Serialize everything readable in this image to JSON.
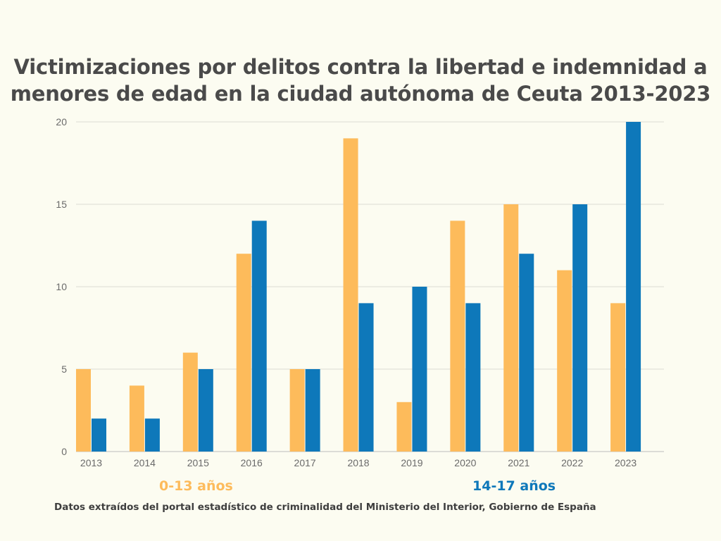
{
  "page": {
    "title_line1": "Victimizaciones por delitos contra la libertad e indemnidad a",
    "title_line2": "menores de edad en la ciudad autónoma de Ceuta 2013-2023",
    "source": "Datos extraídos del portal estadístico de criminalidad del Ministerio del Interior, Gobierno de España",
    "background": "#fcfcf1"
  },
  "chart_data": {
    "type": "bar",
    "title": "Victimizaciones por delitos contra la libertad e indemnidad a menores de edad en la ciudad autónoma de Ceuta 2013-2023",
    "categories": [
      "2013",
      "2014",
      "2015",
      "2016",
      "2017",
      "2018",
      "2019",
      "2020",
      "2021",
      "2022",
      "2023"
    ],
    "series": [
      {
        "name": "0-13 años",
        "color": "#fdbb5b",
        "values": [
          5,
          4,
          6,
          12,
          5,
          19,
          3,
          14,
          15,
          11,
          9
        ]
      },
      {
        "name": "14-17 años",
        "color": "#0e78ba",
        "values": [
          2,
          2,
          5,
          14,
          5,
          9,
          10,
          9,
          12,
          15,
          20
        ]
      }
    ],
    "xlabel": "",
    "ylabel": "",
    "ylim": [
      0,
      20
    ],
    "yticks": [
      "0",
      "5",
      "10",
      "15",
      "20"
    ],
    "grid": true,
    "legend_position": "bottom"
  }
}
